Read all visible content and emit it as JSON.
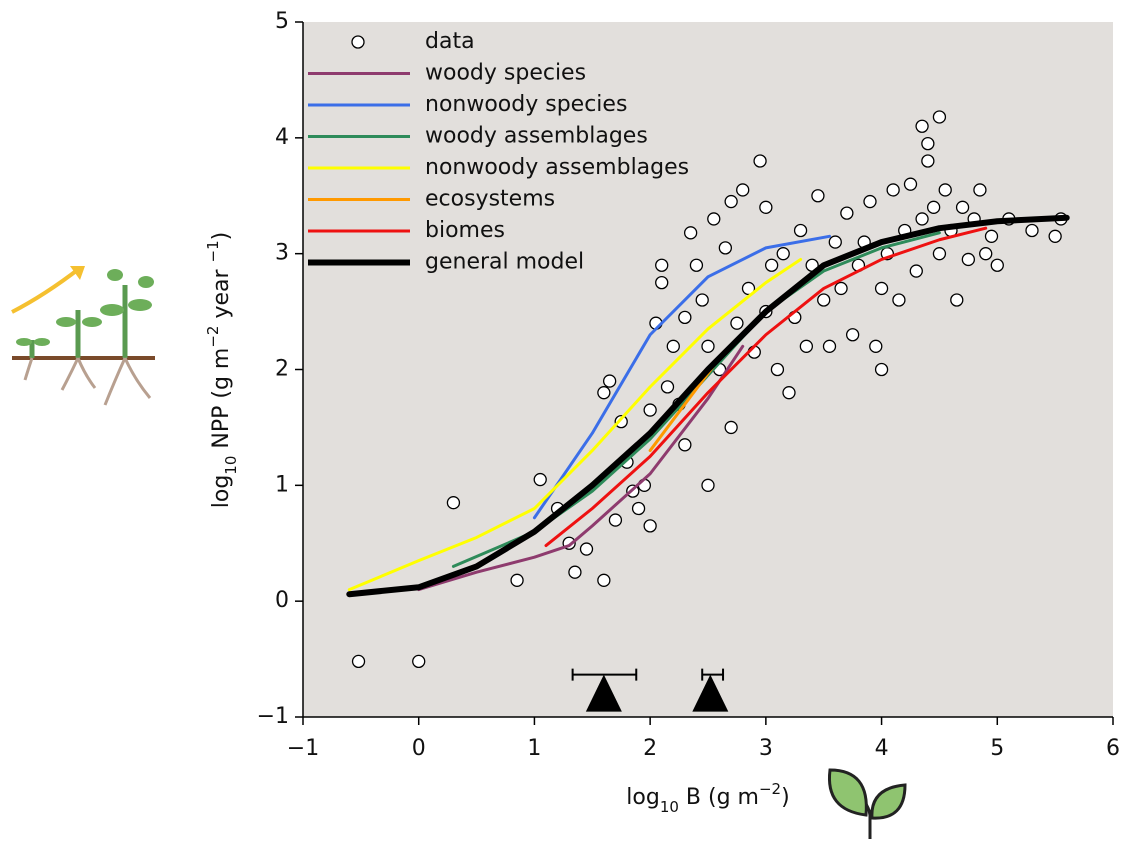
{
  "chart_data": {
    "type": "scatter",
    "xlabel": [
      "log",
      "10",
      " B (g m",
      "−2",
      ")"
    ],
    "ylabel": [
      "log",
      "10",
      " NPP (g m",
      "−2",
      " year ",
      "−1",
      ")"
    ],
    "xlim": [
      -1,
      6
    ],
    "ylim": [
      -1,
      5
    ],
    "xticks": [
      {
        "value": -1,
        "label": "−1"
      },
      0,
      1,
      2,
      3,
      4,
      5,
      6
    ],
    "yticks": [
      {
        "value": -1,
        "label": "−1"
      },
      0,
      1,
      2,
      3,
      4,
      5
    ],
    "background": "#e2dfdc",
    "legend": "upper left",
    "series": [
      {
        "name": "data",
        "type": "scatter",
        "color": "#000000",
        "x": [
          -0.52,
          0,
          0.3,
          0.85,
          1.05,
          1.2,
          1.3,
          1.35,
          1.45,
          1.6,
          1.6,
          1.65,
          1.7,
          1.75,
          1.8,
          1.85,
          1.9,
          1.95,
          2.0,
          2.0,
          2.05,
          2.1,
          2.1,
          2.15,
          2.2,
          2.25,
          2.3,
          2.3,
          2.35,
          2.4,
          2.45,
          2.5,
          2.5,
          2.55,
          2.6,
          2.65,
          2.7,
          2.7,
          2.75,
          2.8,
          2.85,
          2.9,
          2.95,
          3.0,
          3.0,
          3.05,
          3.1,
          3.15,
          3.2,
          3.25,
          3.3,
          3.35,
          3.4,
          3.45,
          3.5,
          3.55,
          3.6,
          3.65,
          3.7,
          3.75,
          3.8,
          3.85,
          3.9,
          3.95,
          4.0,
          4.0,
          4.05,
          4.1,
          4.15,
          4.2,
          4.25,
          4.3,
          4.35,
          4.35,
          4.4,
          4.4,
          4.45,
          4.5,
          4.5,
          4.55,
          4.6,
          4.65,
          4.7,
          4.75,
          4.8,
          4.85,
          4.9,
          4.95,
          5.0,
          5.1,
          5.3,
          5.5,
          5.55
        ],
        "values": [
          -0.52,
          -0.52,
          0.85,
          0.18,
          1.05,
          0.8,
          0.5,
          0.25,
          0.45,
          0.18,
          1.8,
          1.9,
          0.7,
          1.55,
          1.2,
          0.95,
          0.8,
          1.0,
          0.65,
          1.65,
          2.4,
          2.9,
          2.75,
          1.85,
          2.2,
          1.7,
          2.45,
          1.35,
          3.18,
          2.9,
          2.6,
          1.0,
          2.2,
          3.3,
          2.0,
          3.05,
          1.5,
          3.45,
          2.4,
          3.55,
          2.7,
          2.15,
          3.8,
          2.5,
          3.4,
          2.9,
          2.0,
          3.0,
          1.8,
          2.45,
          3.2,
          2.2,
          2.9,
          3.5,
          2.6,
          2.2,
          3.1,
          2.7,
          3.35,
          2.3,
          2.9,
          3.1,
          3.45,
          2.2,
          2.0,
          2.7,
          3.0,
          3.55,
          2.6,
          3.2,
          3.6,
          2.85,
          3.3,
          4.1,
          3.8,
          3.95,
          3.4,
          4.18,
          3.0,
          3.55,
          3.2,
          2.6,
          3.4,
          2.95,
          3.3,
          3.55,
          3.0,
          3.15,
          2.9,
          3.3,
          3.2,
          3.15,
          3.3
        ]
      },
      {
        "name": "woody species",
        "type": "line",
        "color": "#8e3b6e",
        "width": 3,
        "x": [
          0,
          0.5,
          1,
          1.3,
          1.5,
          2,
          2.5,
          2.8
        ],
        "values": [
          0.1,
          0.25,
          0.38,
          0.48,
          0.65,
          1.1,
          1.75,
          2.2
        ]
      },
      {
        "name": "nonwoody species",
        "type": "line",
        "color": "#3b6ee8",
        "width": 3,
        "x": [
          1,
          1.5,
          2,
          2.5,
          3,
          3.55
        ],
        "values": [
          0.72,
          1.45,
          2.3,
          2.8,
          3.05,
          3.15
        ]
      },
      {
        "name": "woody assemblages",
        "type": "line",
        "color": "#2e8b5a",
        "width": 3,
        "x": [
          0.3,
          1,
          1.5,
          2,
          2.5,
          3,
          3.5,
          4,
          4.5
        ],
        "values": [
          0.3,
          0.6,
          0.95,
          1.4,
          1.95,
          2.5,
          2.85,
          3.05,
          3.18
        ]
      },
      {
        "name": "nonwoody assemblages",
        "type": "line",
        "color": "#ffff00",
        "width": 3,
        "x": [
          -0.6,
          0,
          0.5,
          1,
          1.5,
          2,
          2.5,
          3,
          3.3
        ],
        "values": [
          0.1,
          0.35,
          0.55,
          0.8,
          1.3,
          1.85,
          2.35,
          2.75,
          2.95
        ]
      },
      {
        "name": "ecosystems",
        "type": "line",
        "color": "#ff9900",
        "width": 3,
        "x": [
          2,
          2.3,
          2.6
        ],
        "values": [
          1.3,
          1.7,
          2.1
        ]
      },
      {
        "name": "biomes",
        "type": "line",
        "color": "#ee1111",
        "width": 3,
        "x": [
          1.1,
          1.5,
          2,
          2.5,
          3,
          3.5,
          4,
          4.5,
          4.9
        ],
        "values": [
          0.48,
          0.8,
          1.25,
          1.8,
          2.3,
          2.7,
          2.95,
          3.12,
          3.22
        ]
      },
      {
        "name": "general model",
        "type": "line",
        "color": "#000000",
        "width": 6,
        "x": [
          -0.6,
          0,
          0.5,
          1,
          1.5,
          2,
          2.5,
          3,
          3.5,
          4,
          4.5,
          5,
          5.6
        ],
        "values": [
          0.06,
          0.12,
          0.3,
          0.6,
          1.0,
          1.45,
          2.0,
          2.5,
          2.9,
          3.1,
          3.22,
          3.28,
          3.31
        ]
      }
    ],
    "markers": {
      "x": [
        1.6,
        2.52
      ],
      "y": [
        -0.85,
        -0.85
      ],
      "xerr_low": [
        1.33,
        2.45
      ],
      "xerr_high": [
        1.88,
        2.63
      ]
    }
  }
}
